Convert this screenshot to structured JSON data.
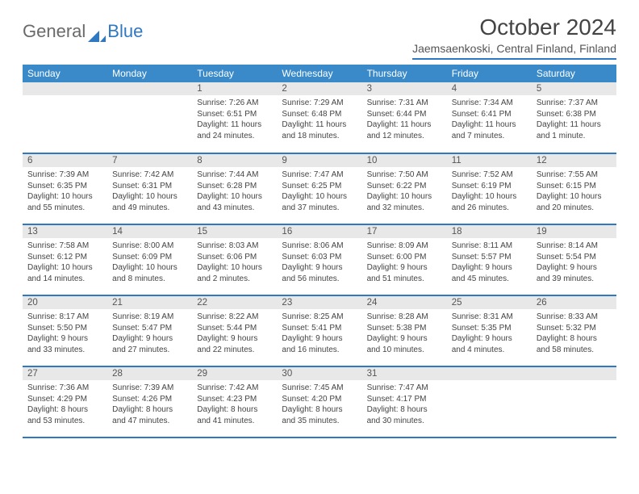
{
  "brand": {
    "first": "General",
    "second": "Blue",
    "icon_color": "#2f78c2"
  },
  "title": "October 2024",
  "location": "Jaemsaenkoski, Central Finland, Finland",
  "colors": {
    "header_bg": "#3a8ac9",
    "header_text": "#ffffff",
    "rule": "#2f78c2",
    "daynum_bg": "#e8e8e8",
    "text": "#444444"
  },
  "weekdays": [
    "Sunday",
    "Monday",
    "Tuesday",
    "Wednesday",
    "Thursday",
    "Friday",
    "Saturday"
  ],
  "weeks": [
    [
      {
        "day": "",
        "sunrise": "",
        "sunset": "",
        "daylight": ""
      },
      {
        "day": "",
        "sunrise": "",
        "sunset": "",
        "daylight": ""
      },
      {
        "day": "1",
        "sunrise": "Sunrise: 7:26 AM",
        "sunset": "Sunset: 6:51 PM",
        "daylight": "Daylight: 11 hours and 24 minutes."
      },
      {
        "day": "2",
        "sunrise": "Sunrise: 7:29 AM",
        "sunset": "Sunset: 6:48 PM",
        "daylight": "Daylight: 11 hours and 18 minutes."
      },
      {
        "day": "3",
        "sunrise": "Sunrise: 7:31 AM",
        "sunset": "Sunset: 6:44 PM",
        "daylight": "Daylight: 11 hours and 12 minutes."
      },
      {
        "day": "4",
        "sunrise": "Sunrise: 7:34 AM",
        "sunset": "Sunset: 6:41 PM",
        "daylight": "Daylight: 11 hours and 7 minutes."
      },
      {
        "day": "5",
        "sunrise": "Sunrise: 7:37 AM",
        "sunset": "Sunset: 6:38 PM",
        "daylight": "Daylight: 11 hours and 1 minute."
      }
    ],
    [
      {
        "day": "6",
        "sunrise": "Sunrise: 7:39 AM",
        "sunset": "Sunset: 6:35 PM",
        "daylight": "Daylight: 10 hours and 55 minutes."
      },
      {
        "day": "7",
        "sunrise": "Sunrise: 7:42 AM",
        "sunset": "Sunset: 6:31 PM",
        "daylight": "Daylight: 10 hours and 49 minutes."
      },
      {
        "day": "8",
        "sunrise": "Sunrise: 7:44 AM",
        "sunset": "Sunset: 6:28 PM",
        "daylight": "Daylight: 10 hours and 43 minutes."
      },
      {
        "day": "9",
        "sunrise": "Sunrise: 7:47 AM",
        "sunset": "Sunset: 6:25 PM",
        "daylight": "Daylight: 10 hours and 37 minutes."
      },
      {
        "day": "10",
        "sunrise": "Sunrise: 7:50 AM",
        "sunset": "Sunset: 6:22 PM",
        "daylight": "Daylight: 10 hours and 32 minutes."
      },
      {
        "day": "11",
        "sunrise": "Sunrise: 7:52 AM",
        "sunset": "Sunset: 6:19 PM",
        "daylight": "Daylight: 10 hours and 26 minutes."
      },
      {
        "day": "12",
        "sunrise": "Sunrise: 7:55 AM",
        "sunset": "Sunset: 6:15 PM",
        "daylight": "Daylight: 10 hours and 20 minutes."
      }
    ],
    [
      {
        "day": "13",
        "sunrise": "Sunrise: 7:58 AM",
        "sunset": "Sunset: 6:12 PM",
        "daylight": "Daylight: 10 hours and 14 minutes."
      },
      {
        "day": "14",
        "sunrise": "Sunrise: 8:00 AM",
        "sunset": "Sunset: 6:09 PM",
        "daylight": "Daylight: 10 hours and 8 minutes."
      },
      {
        "day": "15",
        "sunrise": "Sunrise: 8:03 AM",
        "sunset": "Sunset: 6:06 PM",
        "daylight": "Daylight: 10 hours and 2 minutes."
      },
      {
        "day": "16",
        "sunrise": "Sunrise: 8:06 AM",
        "sunset": "Sunset: 6:03 PM",
        "daylight": "Daylight: 9 hours and 56 minutes."
      },
      {
        "day": "17",
        "sunrise": "Sunrise: 8:09 AM",
        "sunset": "Sunset: 6:00 PM",
        "daylight": "Daylight: 9 hours and 51 minutes."
      },
      {
        "day": "18",
        "sunrise": "Sunrise: 8:11 AM",
        "sunset": "Sunset: 5:57 PM",
        "daylight": "Daylight: 9 hours and 45 minutes."
      },
      {
        "day": "19",
        "sunrise": "Sunrise: 8:14 AM",
        "sunset": "Sunset: 5:54 PM",
        "daylight": "Daylight: 9 hours and 39 minutes."
      }
    ],
    [
      {
        "day": "20",
        "sunrise": "Sunrise: 8:17 AM",
        "sunset": "Sunset: 5:50 PM",
        "daylight": "Daylight: 9 hours and 33 minutes."
      },
      {
        "day": "21",
        "sunrise": "Sunrise: 8:19 AM",
        "sunset": "Sunset: 5:47 PM",
        "daylight": "Daylight: 9 hours and 27 minutes."
      },
      {
        "day": "22",
        "sunrise": "Sunrise: 8:22 AM",
        "sunset": "Sunset: 5:44 PM",
        "daylight": "Daylight: 9 hours and 22 minutes."
      },
      {
        "day": "23",
        "sunrise": "Sunrise: 8:25 AM",
        "sunset": "Sunset: 5:41 PM",
        "daylight": "Daylight: 9 hours and 16 minutes."
      },
      {
        "day": "24",
        "sunrise": "Sunrise: 8:28 AM",
        "sunset": "Sunset: 5:38 PM",
        "daylight": "Daylight: 9 hours and 10 minutes."
      },
      {
        "day": "25",
        "sunrise": "Sunrise: 8:31 AM",
        "sunset": "Sunset: 5:35 PM",
        "daylight": "Daylight: 9 hours and 4 minutes."
      },
      {
        "day": "26",
        "sunrise": "Sunrise: 8:33 AM",
        "sunset": "Sunset: 5:32 PM",
        "daylight": "Daylight: 8 hours and 58 minutes."
      }
    ],
    [
      {
        "day": "27",
        "sunrise": "Sunrise: 7:36 AM",
        "sunset": "Sunset: 4:29 PM",
        "daylight": "Daylight: 8 hours and 53 minutes."
      },
      {
        "day": "28",
        "sunrise": "Sunrise: 7:39 AM",
        "sunset": "Sunset: 4:26 PM",
        "daylight": "Daylight: 8 hours and 47 minutes."
      },
      {
        "day": "29",
        "sunrise": "Sunrise: 7:42 AM",
        "sunset": "Sunset: 4:23 PM",
        "daylight": "Daylight: 8 hours and 41 minutes."
      },
      {
        "day": "30",
        "sunrise": "Sunrise: 7:45 AM",
        "sunset": "Sunset: 4:20 PM",
        "daylight": "Daylight: 8 hours and 35 minutes."
      },
      {
        "day": "31",
        "sunrise": "Sunrise: 7:47 AM",
        "sunset": "Sunset: 4:17 PM",
        "daylight": "Daylight: 8 hours and 30 minutes."
      },
      {
        "day": "",
        "sunrise": "",
        "sunset": "",
        "daylight": ""
      },
      {
        "day": "",
        "sunrise": "",
        "sunset": "",
        "daylight": ""
      }
    ]
  ]
}
